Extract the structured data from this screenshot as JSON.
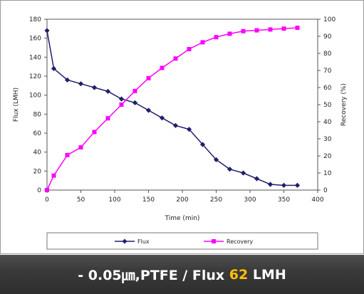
{
  "chart_data": {
    "type": "line",
    "title": "",
    "xlabel": "Time (min)",
    "ylabel": "Flux (LMH)",
    "y2label": "Recovery (%)",
    "xlim": [
      0,
      400
    ],
    "ylim": [
      0,
      180
    ],
    "y2lim": [
      0,
      100
    ],
    "x_ticks": [
      0,
      50,
      100,
      150,
      200,
      250,
      300,
      350,
      400
    ],
    "y_ticks": [
      0,
      20,
      40,
      60,
      80,
      100,
      120,
      140,
      160,
      180
    ],
    "y2_ticks": [
      0,
      10,
      20,
      30,
      40,
      50,
      60,
      70,
      80,
      90,
      100
    ],
    "grid": false,
    "legend_position": "bottom",
    "series": [
      {
        "name": "Flux",
        "axis": "left",
        "color": "#1f1f6e",
        "marker": "diamond",
        "x": [
          0,
          10,
          30,
          50,
          70,
          90,
          110,
          130,
          150,
          170,
          190,
          210,
          230,
          250,
          270,
          290,
          310,
          330,
          350,
          370
        ],
        "y": [
          168,
          128,
          116,
          112,
          108,
          104,
          96,
          92,
          84,
          76,
          68,
          64,
          48,
          32,
          22,
          18,
          12,
          6,
          5,
          5
        ]
      },
      {
        "name": "Recovery",
        "axis": "right",
        "color": "#ff00ff",
        "marker": "square",
        "x": [
          0,
          10,
          30,
          50,
          70,
          90,
          110,
          130,
          150,
          170,
          190,
          210,
          230,
          250,
          270,
          290,
          310,
          330,
          350,
          370
        ],
        "y": [
          0,
          8.5,
          20.5,
          25,
          34,
          42,
          50,
          58,
          65.5,
          71.5,
          77,
          82.5,
          86.5,
          89.5,
          91.5,
          93,
          93.5,
          94,
          94.5,
          95
        ]
      }
    ]
  },
  "caption": {
    "prefix": "- 0.05㎛,PTFE / Flux ",
    "highlight": "62",
    "suffix": " LMH"
  },
  "colors": {
    "caption_highlight": "#ffc000"
  }
}
